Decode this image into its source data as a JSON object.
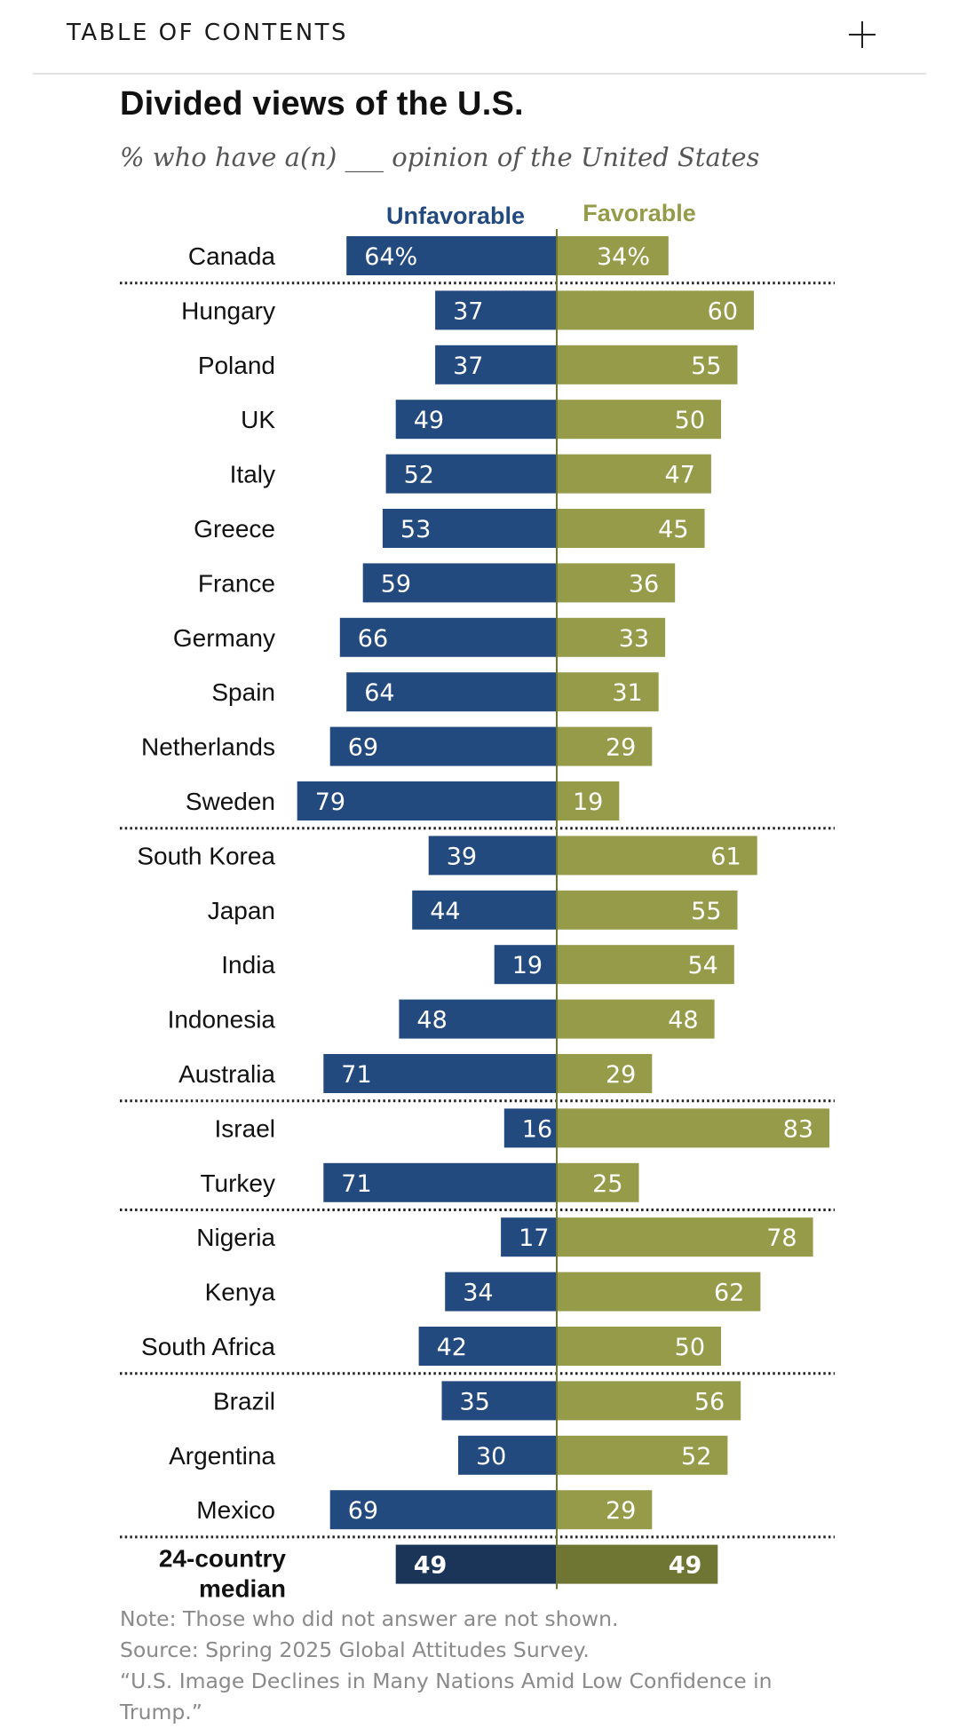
{
  "toc": {
    "label": "TABLE OF CONTENTS",
    "expand_icon": "plus-icon"
  },
  "colors": {
    "unfavorable": "#234a7e",
    "favorable": "#959b48",
    "median_unfavorable": "#1b3558",
    "median_favorable": "#6f7533"
  },
  "chart_data": {
    "type": "bar",
    "orientation": "horizontal-diverging",
    "title": "Divided views of the U.S.",
    "subtitle": "% who have a(n) ___ opinion of the United States",
    "legend": [
      "Unfavorable",
      "Favorable"
    ],
    "categories": [
      "Canada",
      "Hungary",
      "Poland",
      "UK",
      "Italy",
      "Greece",
      "France",
      "Germany",
      "Spain",
      "Netherlands",
      "Sweden",
      "South Korea",
      "Japan",
      "India",
      "Indonesia",
      "Australia",
      "Israel",
      "Turkey",
      "Nigeria",
      "Kenya",
      "South Africa",
      "Brazil",
      "Argentina",
      "Mexico",
      "24-country median"
    ],
    "series": [
      {
        "name": "Unfavorable",
        "values": [
          64,
          37,
          37,
          49,
          52,
          53,
          59,
          66,
          64,
          69,
          79,
          39,
          44,
          19,
          48,
          71,
          16,
          71,
          17,
          34,
          42,
          35,
          30,
          69,
          49
        ],
        "labels": [
          "64%",
          "37",
          "37",
          "49",
          "52",
          "53",
          "59",
          "66",
          "64",
          "69",
          "79",
          "39",
          "44",
          "19",
          "48",
          "71",
          "16",
          "71",
          "17",
          "34",
          "42",
          "35",
          "30",
          "69",
          "49"
        ]
      },
      {
        "name": "Favorable",
        "values": [
          34,
          60,
          55,
          50,
          47,
          45,
          36,
          33,
          31,
          29,
          19,
          61,
          55,
          54,
          48,
          29,
          83,
          25,
          78,
          62,
          50,
          56,
          52,
          29,
          49
        ],
        "labels": [
          "34%",
          "60",
          "55",
          "50",
          "47",
          "45",
          "36",
          "33",
          "31",
          "29",
          "19",
          "61",
          "55",
          "54",
          "48",
          "29",
          "83",
          "25",
          "78",
          "62",
          "50",
          "56",
          "52",
          "29",
          "49"
        ]
      }
    ],
    "group_dividers_after": [
      0,
      10,
      15,
      17,
      20,
      23
    ],
    "median_label_lines": [
      "24-country",
      "median"
    ],
    "grid": false
  },
  "notes": {
    "note": "Note: Those who did not answer are not shown.",
    "source": "Source: Spring 2025 Global Attitudes Survey.",
    "report": "“U.S. Image Declines in Many Nations Amid Low Confidence in",
    "report_cont": "Trump.”"
  }
}
